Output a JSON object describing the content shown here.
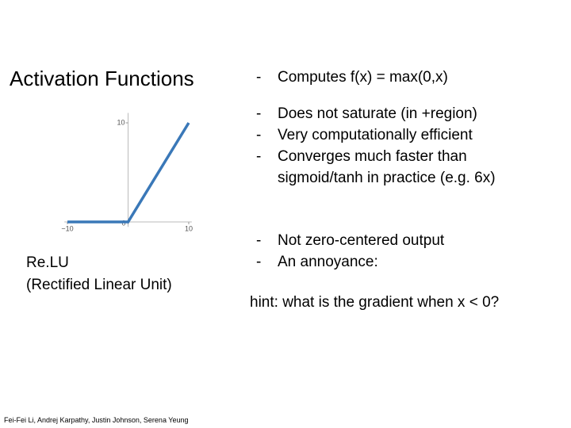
{
  "title": "Activation Functions",
  "bullet_groups": [
    [
      "Computes f(x) = max(0,x)"
    ],
    [
      "Does not saturate (in +region)",
      "Very computationally efficient",
      "Converges much faster than sigmoid/tanh in practice (e.g. 6x)"
    ],
    [
      "Not zero-centered output",
      "An annoyance:"
    ]
  ],
  "hint": "hint: what is the gradient when x < 0?",
  "caption": [
    "Re.LU",
    "(Rectified Linear Unit)"
  ],
  "footer": "Fei-Fei Li, Andrej Karpathy, Justin Johnson, Serena Yeung",
  "chart_data": {
    "type": "line",
    "x": [
      -10,
      0,
      10
    ],
    "values": [
      0,
      0,
      10
    ],
    "color": "#3a78b8",
    "xlim": [
      -10.5,
      10.5
    ],
    "ylim": [
      -0.5,
      11
    ],
    "xticks": [
      {
        "value": -10,
        "label": "−10"
      },
      0,
      10
    ],
    "yticks": [
      10
    ]
  }
}
